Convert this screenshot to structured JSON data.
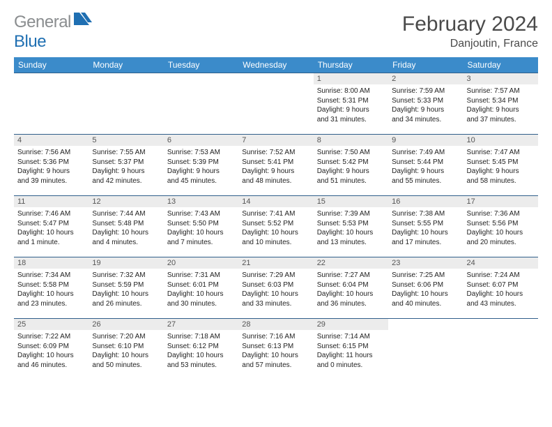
{
  "logo": {
    "gray": "General",
    "blue": "Blue"
  },
  "title": "February 2024",
  "location": "Danjoutin, France",
  "colors": {
    "header_bg": "#3b8bca",
    "header_text": "#ffffff",
    "row_border": "#2f5e8a",
    "dayhead_bg": "#ececec",
    "logo_gray": "#8a8d8f",
    "logo_blue": "#1f6fb2"
  },
  "weekdays": [
    "Sunday",
    "Monday",
    "Tuesday",
    "Wednesday",
    "Thursday",
    "Friday",
    "Saturday"
  ],
  "weeks": [
    [
      null,
      null,
      null,
      null,
      {
        "n": "1",
        "sr": "Sunrise: 8:00 AM",
        "ss": "Sunset: 5:31 PM",
        "d1": "Daylight: 9 hours",
        "d2": "and 31 minutes."
      },
      {
        "n": "2",
        "sr": "Sunrise: 7:59 AM",
        "ss": "Sunset: 5:33 PM",
        "d1": "Daylight: 9 hours",
        "d2": "and 34 minutes."
      },
      {
        "n": "3",
        "sr": "Sunrise: 7:57 AM",
        "ss": "Sunset: 5:34 PM",
        "d1": "Daylight: 9 hours",
        "d2": "and 37 minutes."
      }
    ],
    [
      {
        "n": "4",
        "sr": "Sunrise: 7:56 AM",
        "ss": "Sunset: 5:36 PM",
        "d1": "Daylight: 9 hours",
        "d2": "and 39 minutes."
      },
      {
        "n": "5",
        "sr": "Sunrise: 7:55 AM",
        "ss": "Sunset: 5:37 PM",
        "d1": "Daylight: 9 hours",
        "d2": "and 42 minutes."
      },
      {
        "n": "6",
        "sr": "Sunrise: 7:53 AM",
        "ss": "Sunset: 5:39 PM",
        "d1": "Daylight: 9 hours",
        "d2": "and 45 minutes."
      },
      {
        "n": "7",
        "sr": "Sunrise: 7:52 AM",
        "ss": "Sunset: 5:41 PM",
        "d1": "Daylight: 9 hours",
        "d2": "and 48 minutes."
      },
      {
        "n": "8",
        "sr": "Sunrise: 7:50 AM",
        "ss": "Sunset: 5:42 PM",
        "d1": "Daylight: 9 hours",
        "d2": "and 51 minutes."
      },
      {
        "n": "9",
        "sr": "Sunrise: 7:49 AM",
        "ss": "Sunset: 5:44 PM",
        "d1": "Daylight: 9 hours",
        "d2": "and 55 minutes."
      },
      {
        "n": "10",
        "sr": "Sunrise: 7:47 AM",
        "ss": "Sunset: 5:45 PM",
        "d1": "Daylight: 9 hours",
        "d2": "and 58 minutes."
      }
    ],
    [
      {
        "n": "11",
        "sr": "Sunrise: 7:46 AM",
        "ss": "Sunset: 5:47 PM",
        "d1": "Daylight: 10 hours",
        "d2": "and 1 minute."
      },
      {
        "n": "12",
        "sr": "Sunrise: 7:44 AM",
        "ss": "Sunset: 5:48 PM",
        "d1": "Daylight: 10 hours",
        "d2": "and 4 minutes."
      },
      {
        "n": "13",
        "sr": "Sunrise: 7:43 AM",
        "ss": "Sunset: 5:50 PM",
        "d1": "Daylight: 10 hours",
        "d2": "and 7 minutes."
      },
      {
        "n": "14",
        "sr": "Sunrise: 7:41 AM",
        "ss": "Sunset: 5:52 PM",
        "d1": "Daylight: 10 hours",
        "d2": "and 10 minutes."
      },
      {
        "n": "15",
        "sr": "Sunrise: 7:39 AM",
        "ss": "Sunset: 5:53 PM",
        "d1": "Daylight: 10 hours",
        "d2": "and 13 minutes."
      },
      {
        "n": "16",
        "sr": "Sunrise: 7:38 AM",
        "ss": "Sunset: 5:55 PM",
        "d1": "Daylight: 10 hours",
        "d2": "and 17 minutes."
      },
      {
        "n": "17",
        "sr": "Sunrise: 7:36 AM",
        "ss": "Sunset: 5:56 PM",
        "d1": "Daylight: 10 hours",
        "d2": "and 20 minutes."
      }
    ],
    [
      {
        "n": "18",
        "sr": "Sunrise: 7:34 AM",
        "ss": "Sunset: 5:58 PM",
        "d1": "Daylight: 10 hours",
        "d2": "and 23 minutes."
      },
      {
        "n": "19",
        "sr": "Sunrise: 7:32 AM",
        "ss": "Sunset: 5:59 PM",
        "d1": "Daylight: 10 hours",
        "d2": "and 26 minutes."
      },
      {
        "n": "20",
        "sr": "Sunrise: 7:31 AM",
        "ss": "Sunset: 6:01 PM",
        "d1": "Daylight: 10 hours",
        "d2": "and 30 minutes."
      },
      {
        "n": "21",
        "sr": "Sunrise: 7:29 AM",
        "ss": "Sunset: 6:03 PM",
        "d1": "Daylight: 10 hours",
        "d2": "and 33 minutes."
      },
      {
        "n": "22",
        "sr": "Sunrise: 7:27 AM",
        "ss": "Sunset: 6:04 PM",
        "d1": "Daylight: 10 hours",
        "d2": "and 36 minutes."
      },
      {
        "n": "23",
        "sr": "Sunrise: 7:25 AM",
        "ss": "Sunset: 6:06 PM",
        "d1": "Daylight: 10 hours",
        "d2": "and 40 minutes."
      },
      {
        "n": "24",
        "sr": "Sunrise: 7:24 AM",
        "ss": "Sunset: 6:07 PM",
        "d1": "Daylight: 10 hours",
        "d2": "and 43 minutes."
      }
    ],
    [
      {
        "n": "25",
        "sr": "Sunrise: 7:22 AM",
        "ss": "Sunset: 6:09 PM",
        "d1": "Daylight: 10 hours",
        "d2": "and 46 minutes."
      },
      {
        "n": "26",
        "sr": "Sunrise: 7:20 AM",
        "ss": "Sunset: 6:10 PM",
        "d1": "Daylight: 10 hours",
        "d2": "and 50 minutes."
      },
      {
        "n": "27",
        "sr": "Sunrise: 7:18 AM",
        "ss": "Sunset: 6:12 PM",
        "d1": "Daylight: 10 hours",
        "d2": "and 53 minutes."
      },
      {
        "n": "28",
        "sr": "Sunrise: 7:16 AM",
        "ss": "Sunset: 6:13 PM",
        "d1": "Daylight: 10 hours",
        "d2": "and 57 minutes."
      },
      {
        "n": "29",
        "sr": "Sunrise: 7:14 AM",
        "ss": "Sunset: 6:15 PM",
        "d1": "Daylight: 11 hours",
        "d2": "and 0 minutes."
      },
      null,
      null
    ]
  ]
}
